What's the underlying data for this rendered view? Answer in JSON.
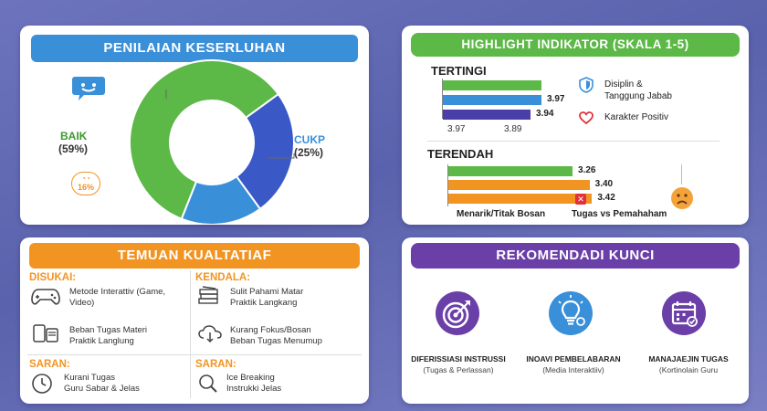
{
  "overall": {
    "title": "PENILAIAN KESERLUHAN",
    "baik_label": "BAIK",
    "baik_pct": "(59%)",
    "cukp_label": "CUKP",
    "cukp_pct": "(25%)",
    "low_pct": "16%",
    "segments": [
      {
        "value": 59,
        "color": "#5cb847"
      },
      {
        "value": 25,
        "color": "#3b59c6"
      },
      {
        "value": 16,
        "color": "#3a8fd9"
      }
    ]
  },
  "highlight": {
    "title": "HIGHLIGHT INDIKATOR (SKALA 1-5)",
    "top_title": "TERTINGI",
    "top_bars": [
      {
        "value": 3.97,
        "label": "",
        "color": "#5cb847"
      },
      {
        "value": 3.97,
        "label": "3.97",
        "color": "#3a8fd9"
      },
      {
        "value": 3.94,
        "label": "3.94",
        "color": "#4a3fa8"
      }
    ],
    "top_axis": [
      "3.97",
      "3.89"
    ],
    "top_items": [
      "Disiplin &",
      "Tanggung Jabab",
      "Karakter Positiv"
    ],
    "bottom_title": "TERENDAH",
    "bottom_bars": [
      {
        "value": 3.26,
        "label": "3.26",
        "color": "#5cb847"
      },
      {
        "value": 3.4,
        "label": "3.40",
        "color": "#f29422"
      },
      {
        "value": 3.42,
        "label": "3.42",
        "color": "#f29422"
      }
    ],
    "bottom_captions": [
      "Menarik/Titak Bosan",
      "Tugas vs Pemahaham"
    ]
  },
  "temuan": {
    "title": "TEMUAN KUALTATIAF",
    "disukai_label": "DISUKAI:",
    "disukai_items": [
      "Metode Interattiv (Game,",
      "Video)",
      "Beban Tugas Materi",
      "Praktik Langlung"
    ],
    "kendala_label": "KENDALA:",
    "kendala_items": [
      "Sulit Pahami Matar",
      "Praktik Langkang",
      "Kurang Fokus/Bosan",
      "Beban Tugas Menumup"
    ],
    "saran1_label": "SARAN:",
    "saran1_items": [
      "Kurani Tugas",
      "Guru Sabar & Jelas"
    ],
    "saran2_label": "SARAN:",
    "saran2_items": [
      "Ice Breaking",
      "Instrukki Jelas"
    ]
  },
  "rekomendasi": {
    "title": "REKOMENDADI KUNCI",
    "items": [
      {
        "title": "DIFERISSIASI INSTRUSSI",
        "sub": "(Tugas & Perlassan)"
      },
      {
        "title": "INOAVI PEMBELABARAN",
        "sub": "(Media Interaktiiv)"
      },
      {
        "title": "MANAJAEJIN TUGAS",
        "sub": "(Kortinolain Guru"
      }
    ]
  }
}
